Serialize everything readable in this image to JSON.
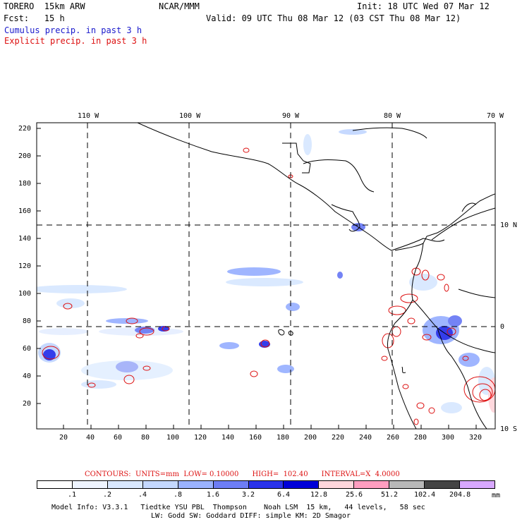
{
  "header": {
    "model": "TORERO  15km ARW",
    "org": "NCAR/MMM",
    "init": "Init: 18 UTC Wed 07 Mar 12",
    "fcst": "Fcst:   15 h",
    "valid": "Valid: 09 UTC Thu 08 Mar 12 (03 CST Thu 08 Mar 12)",
    "field1": "Cumulus precip. in past 3 h",
    "field2": "Explicit precip. in past 3 h"
  },
  "top_lon_labels": [
    "110 W",
    "100 W",
    "90 W",
    "80 W",
    "70 W"
  ],
  "right_lat_labels": [
    "10 N",
    "0",
    "10 S"
  ],
  "y_ticks": [
    "220",
    "200",
    "180",
    "160",
    "140",
    "120",
    "100",
    "80",
    "60",
    "40",
    "20"
  ],
  "x_ticks": [
    "20",
    "40",
    "60",
    "80",
    "100",
    "120",
    "140",
    "160",
    "180",
    "200",
    "220",
    "240",
    "260",
    "280",
    "300",
    "320"
  ],
  "contour_info": "CONTOURS:  UNITS=mm  LOW= 0.10000      HIGH=  102.40      INTERVAL=X  4.0000",
  "colorbar": {
    "labels": [
      ".1",
      ".2",
      ".4",
      ".8",
      "1.6",
      "3.2",
      "6.4",
      "12.8",
      "25.6",
      "51.2",
      "102.4",
      "204.8"
    ],
    "units": "mm",
    "colors": [
      "#ffffff",
      "#eef4ff",
      "#d9e8ff",
      "#c4d8ff",
      "#9ab2ff",
      "#6d7df5",
      "#2a33ea",
      "#0000d8",
      "#ffd6dc",
      "#ff9ec0",
      "#b8b8b8",
      "#444444",
      "#d8a8ff"
    ]
  },
  "model_info_line1": "Model Info: V3.3.1   Tiedtke YSU PBL  Thompson    Noah LSM  15 km,   44 levels,   58 sec",
  "model_info_line2": "LW: Godd SW: Goddard DIFF: simple KM: 2D Smagor"
}
